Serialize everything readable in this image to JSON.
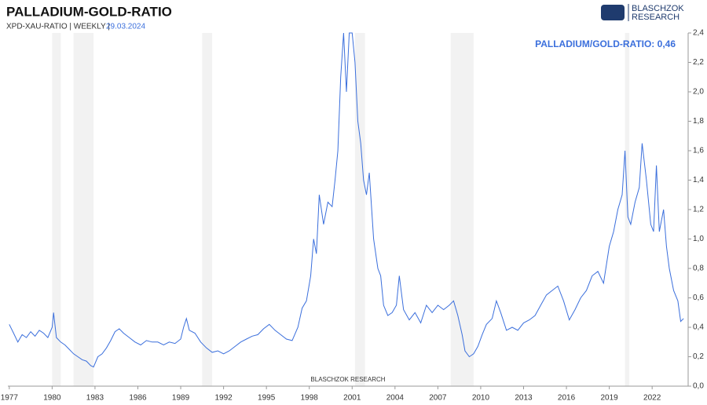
{
  "chart_data": {
    "type": "line",
    "title": "PALLADIUM-GOLD-RATIO",
    "subtitle": "XPD-XAU-RATIO | WEEKLY |",
    "date": "29.03.2024",
    "annotation": "PALLADIUM/GOLD-RATIO: 0,46",
    "watermark": "BLASCHZOK RESEARCH",
    "logo": [
      "BLASCHZOK",
      "RESEARCH"
    ],
    "xlim": [
      1976.9,
      2024.3
    ],
    "xticks": [
      1977,
      1980,
      1983,
      1986,
      1989,
      1992,
      1995,
      1998,
      2001,
      2004,
      2007,
      2010,
      2013,
      2016,
      2019,
      2022
    ],
    "ylim": [
      0,
      2.4
    ],
    "yticks": [
      {
        "value": 0,
        "label": "0,0"
      },
      {
        "value": 0.2,
        "label": "0,2"
      },
      {
        "value": 0.4,
        "label": "0,4"
      },
      {
        "value": 0.6,
        "label": "0,6"
      },
      {
        "value": 0.8,
        "label": "0,8"
      },
      {
        "value": 1,
        "label": "1,0"
      },
      {
        "value": 1.2,
        "label": "1,2"
      },
      {
        "value": 1.4,
        "label": "1,4"
      },
      {
        "value": 1.6,
        "label": "1,6"
      },
      {
        "value": 1.8,
        "label": "1,8"
      },
      {
        "value": 2,
        "label": "2,0"
      },
      {
        "value": 2.2,
        "label": "2,2"
      },
      {
        "value": 2.4,
        "label": "2,4"
      }
    ],
    "shaded_periods": [
      [
        1980.0,
        1980.6
      ],
      [
        1981.5,
        1982.9
      ],
      [
        1990.5,
        1991.2
      ],
      [
        2001.2,
        2001.9
      ],
      [
        2007.9,
        2009.5
      ],
      [
        2020.1,
        2020.4
      ]
    ],
    "shade_color": "#f2f2f2",
    "x": [
      1977.0,
      1977.3,
      1977.6,
      1977.9,
      1978.2,
      1978.5,
      1978.8,
      1979.1,
      1979.4,
      1979.7,
      1980.0,
      1980.1,
      1980.3,
      1980.6,
      1980.9,
      1981.2,
      1981.5,
      1981.8,
      1982.1,
      1982.4,
      1982.7,
      1982.9,
      1983.2,
      1983.5,
      1983.8,
      1984.1,
      1984.4,
      1984.7,
      1985.0,
      1985.4,
      1985.8,
      1986.2,
      1986.6,
      1987.0,
      1987.4,
      1987.8,
      1988.2,
      1988.6,
      1989.0,
      1989.2,
      1989.4,
      1989.6,
      1990.0,
      1990.4,
      1990.8,
      1991.2,
      1991.6,
      1992.0,
      1992.4,
      1992.8,
      1993.2,
      1993.6,
      1994.0,
      1994.4,
      1994.8,
      1995.2,
      1995.6,
      1996.0,
      1996.4,
      1996.8,
      1997.2,
      1997.5,
      1997.8,
      1998.1,
      1998.3,
      1998.5,
      1998.7,
      1999.0,
      1999.3,
      1999.6,
      1999.8,
      2000.0,
      2000.2,
      2000.4,
      2000.6,
      2000.8,
      2001.0,
      2001.2,
      2001.4,
      2001.6,
      2001.8,
      2002.0,
      2002.2,
      2002.5,
      2002.8,
      2003.0,
      2003.2,
      2003.5,
      2003.8,
      2004.1,
      2004.3,
      2004.6,
      2005.0,
      2005.4,
      2005.8,
      2006.2,
      2006.6,
      2007.0,
      2007.4,
      2007.8,
      2008.1,
      2008.4,
      2008.7,
      2008.9,
      2009.2,
      2009.5,
      2009.8,
      2010.1,
      2010.4,
      2010.8,
      2011.1,
      2011.4,
      2011.8,
      2012.2,
      2012.6,
      2013.0,
      2013.4,
      2013.8,
      2014.2,
      2014.6,
      2015.0,
      2015.4,
      2015.8,
      2016.2,
      2016.6,
      2017.0,
      2017.4,
      2017.8,
      2018.2,
      2018.6,
      2019.0,
      2019.3,
      2019.6,
      2019.9,
      2020.1,
      2020.3,
      2020.5,
      2020.8,
      2021.1,
      2021.3,
      2021.6,
      2021.9,
      2022.1,
      2022.3,
      2022.5,
      2022.8,
      2023.0,
      2023.2,
      2023.5,
      2023.8,
      2024.0,
      2024.2
    ],
    "series": [
      {
        "name": "Palladium/Gold-Ratio",
        "color": "#3b6fdc",
        "values": [
          0.42,
          0.36,
          0.3,
          0.35,
          0.33,
          0.37,
          0.34,
          0.38,
          0.36,
          0.33,
          0.4,
          0.5,
          0.33,
          0.3,
          0.28,
          0.25,
          0.22,
          0.2,
          0.18,
          0.17,
          0.14,
          0.13,
          0.2,
          0.22,
          0.26,
          0.31,
          0.37,
          0.39,
          0.36,
          0.33,
          0.3,
          0.28,
          0.31,
          0.3,
          0.3,
          0.28,
          0.3,
          0.29,
          0.32,
          0.4,
          0.46,
          0.38,
          0.36,
          0.3,
          0.26,
          0.23,
          0.24,
          0.22,
          0.24,
          0.27,
          0.3,
          0.32,
          0.34,
          0.35,
          0.39,
          0.42,
          0.38,
          0.35,
          0.32,
          0.31,
          0.4,
          0.53,
          0.58,
          0.75,
          1.0,
          0.9,
          1.3,
          1.1,
          1.25,
          1.22,
          1.4,
          1.6,
          2.1,
          2.4,
          2.0,
          2.4,
          2.4,
          2.2,
          1.8,
          1.65,
          1.4,
          1.3,
          1.45,
          1.0,
          0.8,
          0.75,
          0.55,
          0.48,
          0.5,
          0.55,
          0.75,
          0.52,
          0.45,
          0.5,
          0.43,
          0.55,
          0.5,
          0.55,
          0.52,
          0.55,
          0.58,
          0.48,
          0.35,
          0.24,
          0.2,
          0.22,
          0.27,
          0.35,
          0.42,
          0.46,
          0.58,
          0.5,
          0.38,
          0.4,
          0.38,
          0.43,
          0.45,
          0.48,
          0.55,
          0.62,
          0.65,
          0.68,
          0.58,
          0.45,
          0.52,
          0.6,
          0.65,
          0.75,
          0.78,
          0.7,
          0.95,
          1.05,
          1.2,
          1.3,
          1.6,
          1.15,
          1.1,
          1.25,
          1.35,
          1.65,
          1.4,
          1.1,
          1.05,
          1.5,
          1.05,
          1.2,
          0.95,
          0.8,
          0.65,
          0.58,
          0.44,
          0.46
        ]
      }
    ]
  }
}
